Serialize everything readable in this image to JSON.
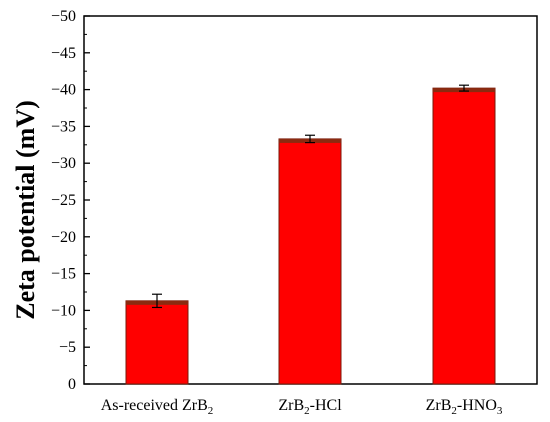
{
  "chart_data": {
    "type": "bar",
    "title": "",
    "xlabel": "",
    "ylabel": "Zeta potential (mV)",
    "ylim": [
      0,
      -50
    ],
    "yticks": [
      0,
      -5,
      -10,
      -15,
      -20,
      -25,
      -30,
      -35,
      -40,
      -45,
      -50
    ],
    "ytick_labels": [
      "0",
      "−5",
      "−10",
      "−15",
      "−20",
      "−25",
      "−30",
      "−35",
      "−40",
      "−45",
      "−50"
    ],
    "categories": [
      {
        "base": "As-received ZrB",
        "sub": "2",
        "tail": ""
      },
      {
        "base": "ZrB",
        "sub": "2",
        "tail": "-HCl"
      },
      {
        "base": "ZrB",
        "sub": "2",
        "tail": "-HNO",
        "sub2": "3"
      }
    ],
    "values": [
      -11.3,
      -33.3,
      -40.2
    ],
    "errors": [
      0.9,
      0.5,
      0.4
    ],
    "grid": false,
    "legend": "none",
    "colors": {
      "bar_fill": "#ff0000",
      "bar_edge": "#7a1a0a",
      "bar_top": "#8b2a10",
      "error_bar": "#000000",
      "axis": "#000000"
    }
  }
}
